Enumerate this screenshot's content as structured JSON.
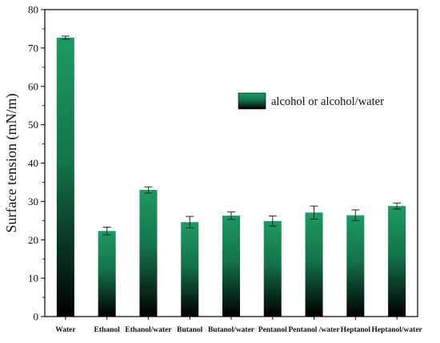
{
  "chart_data": {
    "type": "bar",
    "categories": [
      "Water",
      "Ethanol",
      "Ethanol/water",
      "Butanol",
      "Butanol/water",
      "Pentanol",
      "Pentanol /water",
      "Heptanol",
      "Heptanol/water"
    ],
    "series": [
      {
        "name": "alcohol or alcohol/water",
        "values": [
          72.7,
          22.3,
          33.0,
          24.6,
          26.3,
          24.9,
          27.1,
          26.4,
          28.8
        ],
        "errors": [
          0.4,
          1.0,
          0.8,
          1.5,
          1.0,
          1.3,
          1.7,
          1.4,
          0.8
        ]
      }
    ],
    "xlabel": "",
    "ylabel": "Surface tension (mN/m)",
    "ylim": [
      0,
      80
    ],
    "yticks": [
      "0",
      "10",
      "20",
      "30",
      "40",
      "50",
      "60",
      "70",
      "80"
    ],
    "grid": false,
    "legend_position": "top-right",
    "colors": {
      "bar_top": "#1d9a62",
      "bar_bottom": "#000000",
      "axis": "#000000"
    }
  }
}
